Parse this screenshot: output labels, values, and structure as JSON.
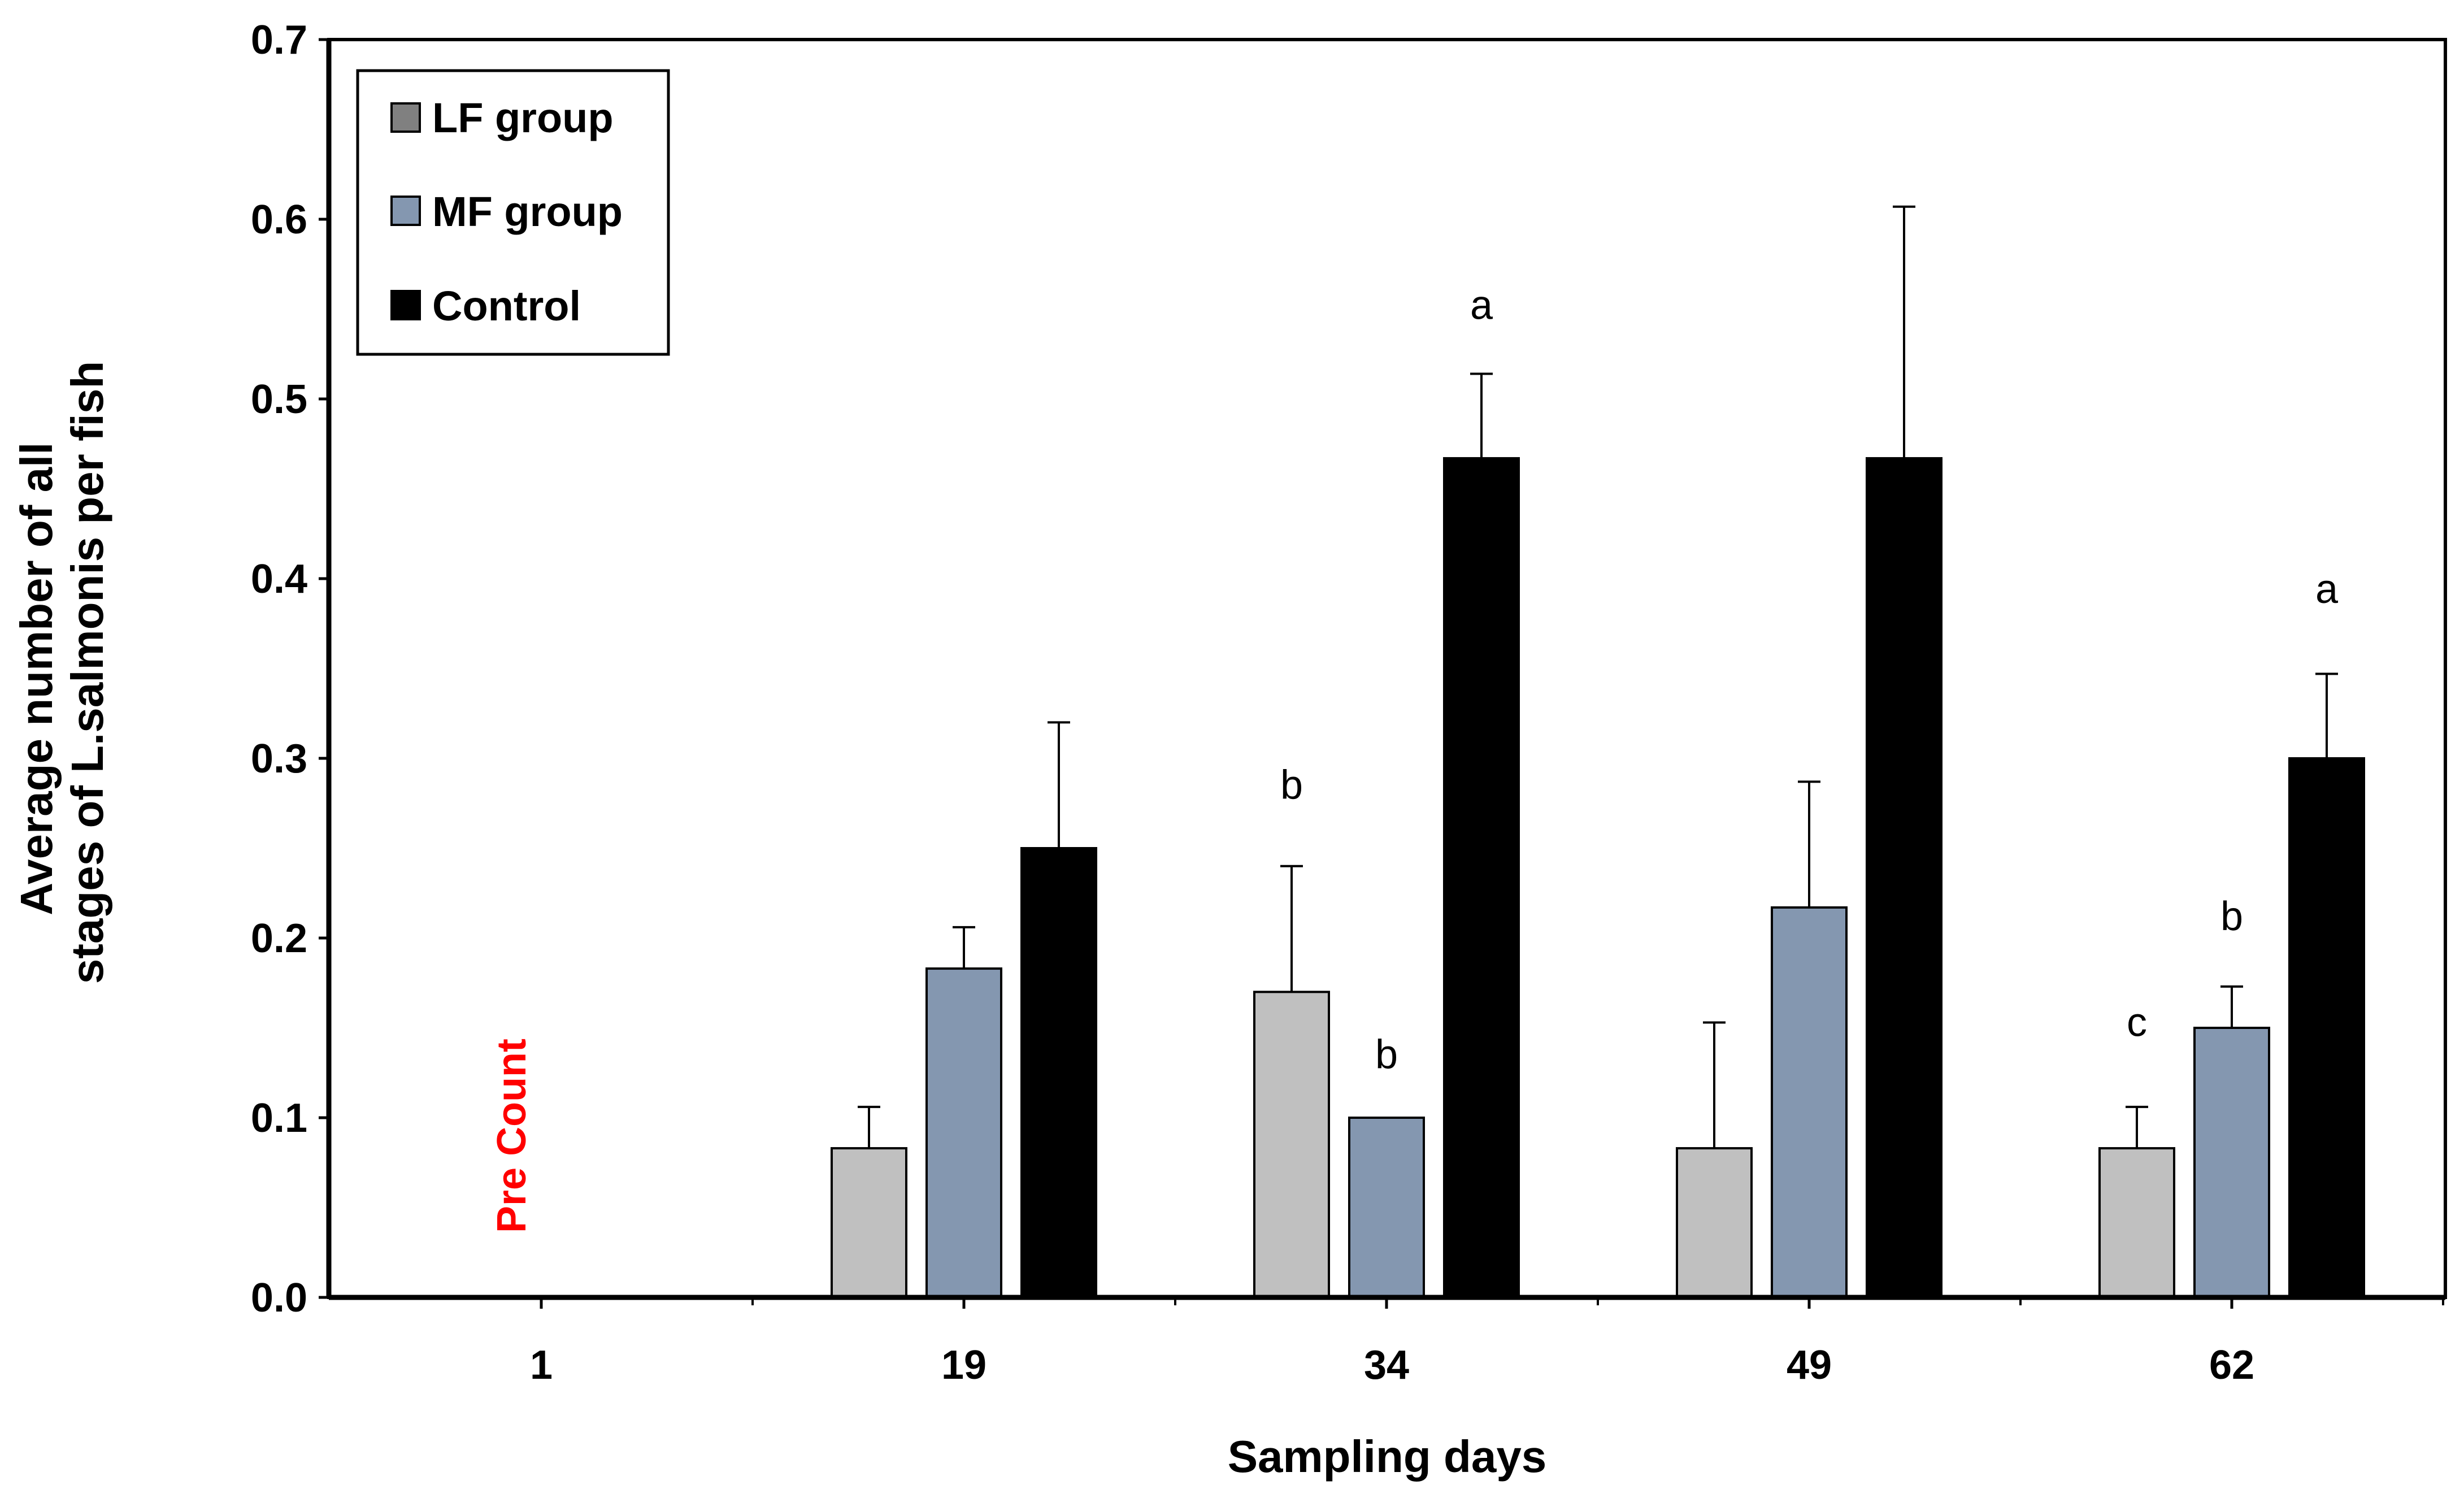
{
  "chart_data": {
    "type": "bar",
    "title": "",
    "xlabel": "Sampling days",
    "ylabel_lines": [
      "Average number of all",
      "stages of L.salmonis  per fish"
    ],
    "categories": [
      "1",
      "19",
      "34",
      "49",
      "62"
    ],
    "ylim": [
      0,
      0.7
    ],
    "yticks": [
      "0.0",
      "0.1",
      "0.2",
      "0.3",
      "0.4",
      "0.5",
      "0.6",
      "0.7"
    ],
    "legend_position": "top-left",
    "series": [
      {
        "name": "LF group",
        "color": "#c0c0c0",
        "values": [
          null,
          0.083,
          0.17,
          0.083,
          0.083
        ],
        "errors": [
          null,
          0.023,
          0.07,
          0.07,
          0.023
        ]
      },
      {
        "name": "MF group",
        "color": "#8497b0",
        "values": [
          null,
          0.183,
          0.1,
          0.217,
          0.15
        ],
        "errors": [
          null,
          0.023,
          null,
          0.07,
          0.023
        ]
      },
      {
        "name": "Control",
        "color": "#000000",
        "values": [
          null,
          0.25,
          0.467,
          0.467,
          0.3
        ],
        "errors": [
          null,
          0.07,
          0.047,
          0.14,
          0.047
        ]
      }
    ],
    "legend_swatch_colors": [
      "#808080",
      "#8497b0",
      "#000000"
    ],
    "significance_labels": [
      {
        "category": "34",
        "series": "LF group",
        "text": "b",
        "y": 0.285
      },
      {
        "category": "34",
        "series": "MF group",
        "text": "b",
        "y": 0.135
      },
      {
        "category": "34",
        "series": "Control",
        "text": "a",
        "y": 0.552
      },
      {
        "category": "62",
        "series": "LF group",
        "text": "c",
        "y": 0.153
      },
      {
        "category": "62",
        "series": "MF group",
        "text": "b",
        "y": 0.212
      },
      {
        "category": "62",
        "series": "Control",
        "text": "a",
        "y": 0.394
      }
    ],
    "annotation": {
      "category": "1",
      "text": "Pre Count",
      "color": "#ff0000"
    }
  }
}
